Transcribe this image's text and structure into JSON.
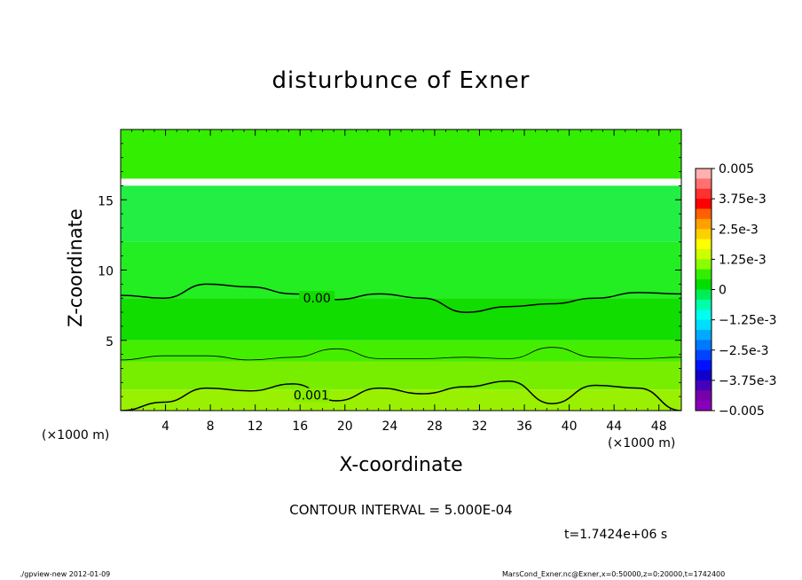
{
  "chart_data": {
    "type": "heatmap",
    "title": "disturbunce of Exner",
    "xlabel": "X-coordinate",
    "ylabel": "Z-coordinate",
    "x_unit": "(×1000 m)",
    "y_unit": "(×1000 m)",
    "xlim": [
      0,
      50
    ],
    "ylim": [
      0,
      20
    ],
    "x_ticks": [
      4,
      8,
      12,
      16,
      20,
      24,
      28,
      32,
      36,
      40,
      44,
      48
    ],
    "y_ticks": [
      5,
      10,
      15
    ],
    "contour_interval": "CONTOUR INTERVAL = 5.000E-04",
    "time": "t=1.7424e+06 s",
    "colorbar": {
      "min": -0.005,
      "max": 0.005,
      "labels": [
        "0.005",
        "3.75e-3",
        "2.5e-3",
        "1.25e-3",
        "0",
        "−1.25e-3",
        "−2.5e-3",
        "−3.75e-3",
        "−0.005"
      ],
      "colors": [
        "#ffb0b0",
        "#ff7070",
        "#ff3030",
        "#ff0000",
        "#ff6000",
        "#ffa000",
        "#ffd000",
        "#ffff00",
        "#ccff00",
        "#88ff00",
        "#33ee00",
        "#00dd00",
        "#00ee55",
        "#00ffaa",
        "#00ffee",
        "#00ddff",
        "#00aaff",
        "#0077ff",
        "#0044ff",
        "#0011ff",
        "#1100cc",
        "#4400bb",
        "#7700aa",
        "#8800bb"
      ]
    },
    "bands": [
      {
        "z_range": [
          16.5,
          20
        ],
        "value": 0.0003,
        "color": "#33ee00"
      },
      {
        "z_range": [
          12,
          16
        ],
        "value": -0.0002,
        "color": "#22ee44"
      },
      {
        "z_range": [
          8,
          12
        ],
        "value": 0.0001,
        "color": "#22ee22"
      },
      {
        "z_range": [
          5,
          8
        ],
        "value": 0.0003,
        "color": "#11dd00"
      },
      {
        "z_range": [
          3.5,
          5
        ],
        "value": 0.0006,
        "color": "#44ee00"
      },
      {
        "z_range": [
          1.5,
          3.5
        ],
        "value": 0.0009,
        "color": "#77ee00"
      },
      {
        "z_range": [
          0,
          1.5
        ],
        "value": 0.0012,
        "color": "#99f000"
      }
    ],
    "contour_lines": [
      {
        "label": "0.00",
        "z": [
          8.2,
          8.0,
          9.0,
          8.8,
          8.3,
          7.9,
          8.3,
          8.0,
          7.0,
          7.4,
          7.6,
          8.0,
          8.4,
          8.3
        ]
      },
      {
        "label": "",
        "z": [
          3.6,
          3.9,
          3.9,
          3.6,
          3.8,
          4.4,
          3.7,
          3.7,
          3.8,
          3.7,
          4.5,
          3.8,
          3.7,
          3.8
        ]
      },
      {
        "label": "0.001",
        "z": [
          0.0,
          0.6,
          1.6,
          1.4,
          1.9,
          0.7,
          1.6,
          1.2,
          1.7,
          2.1,
          0.5,
          1.8,
          1.6,
          0.0
        ]
      }
    ]
  },
  "footer": {
    "left": "./gpview-new   2012-01-09",
    "right": "MarsCond_Exner.nc@Exner,x=0:50000,z=0:20000,t=1742400"
  }
}
